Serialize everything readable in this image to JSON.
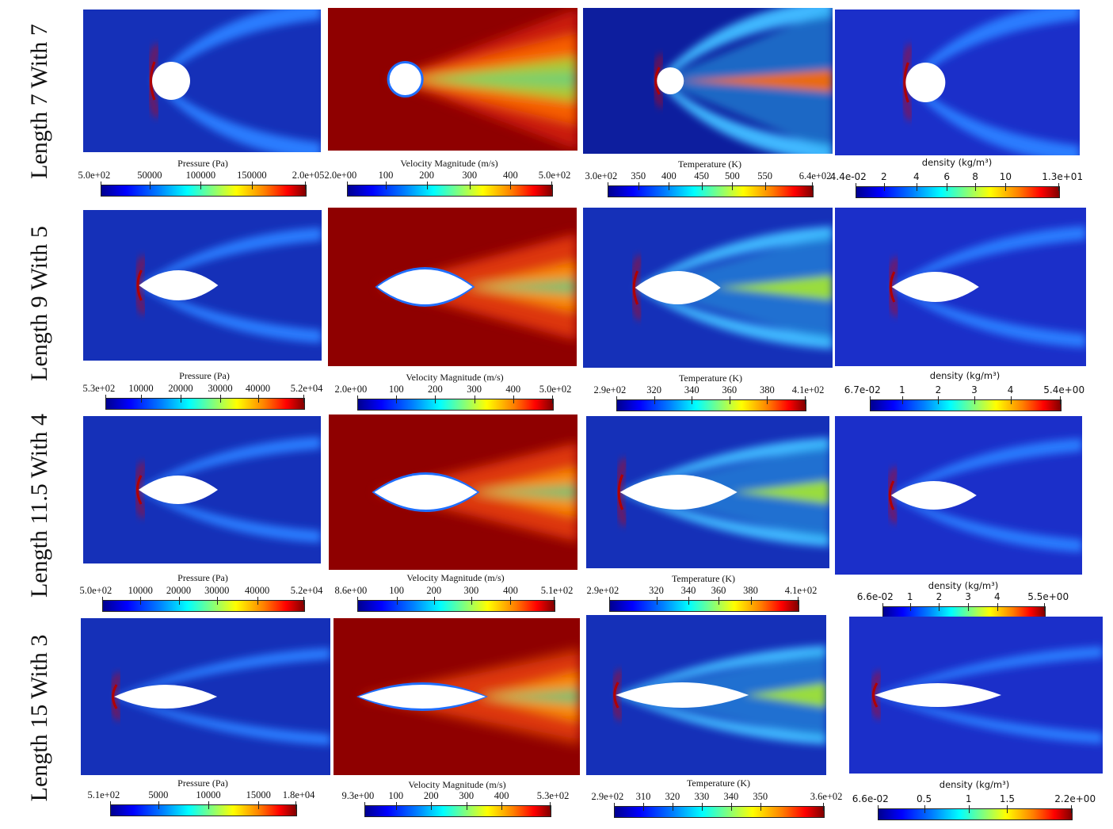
{
  "colormap": {
    "low": "#00008f",
    "mid": "#00ffff",
    "high": "#800000",
    "background_low": "#1a33b8",
    "background_high": "#9b0a0a"
  },
  "rows": [
    {
      "label": "Length 7 With 7",
      "shape": "circle",
      "colorbars": [
        {
          "title": "Pressure (Pa)",
          "ticks": [
            "5.0e+02",
            "50000",
            "100000",
            "150000",
            "2.0e+05"
          ]
        },
        {
          "title": "Velocity Magnitude (m/s)",
          "ticks": [
            "2.0e+00",
            "100",
            "200",
            "300",
            "400",
            "5.0e+02"
          ]
        },
        {
          "title": "Temperature (K)",
          "ticks": [
            "3.0e+02",
            "350",
            "400",
            "450",
            "500",
            "550",
            "6.4e+02"
          ]
        },
        {
          "title": "density (kg/m³)",
          "ticks": [
            "4.4e-02",
            "2",
            "4",
            "6",
            "8",
            "10",
            "1.3e+01"
          ]
        }
      ]
    },
    {
      "label": "Length 9 With 5",
      "shape": "ogive",
      "colorbars": [
        {
          "title": "Pressure (Pa)",
          "ticks": [
            "5.3e+02",
            "10000",
            "20000",
            "30000",
            "40000",
            "5.2e+04"
          ]
        },
        {
          "title": "Velocity Magnitude (m/s)",
          "ticks": [
            "2.0e+00",
            "100",
            "200",
            "300",
            "400",
            "5.0e+02"
          ]
        },
        {
          "title": "Temperature (K)",
          "ticks": [
            "2.9e+02",
            "320",
            "340",
            "360",
            "380",
            "4.1e+02"
          ]
        },
        {
          "title": "density (kg/m³)",
          "ticks": [
            "6.7e-02",
            "1",
            "2",
            "3",
            "4",
            "5.4e+00"
          ]
        }
      ]
    },
    {
      "label": "Length 11.5 With 4",
      "shape": "ogive",
      "colorbars": [
        {
          "title": "Pressure (Pa)",
          "ticks": [
            "5.0e+02",
            "10000",
            "20000",
            "30000",
            "40000",
            "5.2e+04"
          ]
        },
        {
          "title": "Velocity Magnitude (m/s)",
          "ticks": [
            "8.6e+00",
            "100",
            "200",
            "300",
            "400",
            "5.1e+02"
          ]
        },
        {
          "title": "Temperature (K)",
          "ticks": [
            "2.9e+02",
            "320",
            "340",
            "360",
            "380",
            "4.1e+02"
          ]
        },
        {
          "title": "density (kg/m³)",
          "ticks": [
            "6.6e-02",
            "1",
            "2",
            "3",
            "4",
            "5.5e+00"
          ]
        }
      ]
    },
    {
      "label": "Length 15 With 3",
      "shape": "ogive",
      "colorbars": [
        {
          "title": "Pressure (Pa)",
          "ticks": [
            "5.1e+02",
            "5000",
            "10000",
            "15000",
            "1.8e+04"
          ]
        },
        {
          "title": "Velocity Magnitude (m/s)",
          "ticks": [
            "9.3e+00",
            "100",
            "200",
            "300",
            "400",
            "5.3e+02"
          ]
        },
        {
          "title": "Temperature (K)",
          "ticks": [
            "2.9e+02",
            "310",
            "320",
            "330",
            "340",
            "350",
            "3.6e+02"
          ]
        },
        {
          "title": "density (kg/m³)",
          "ticks": [
            "6.6e-02",
            "0.5",
            "1",
            "1.5",
            "2.2e+00"
          ]
        }
      ]
    }
  ]
}
